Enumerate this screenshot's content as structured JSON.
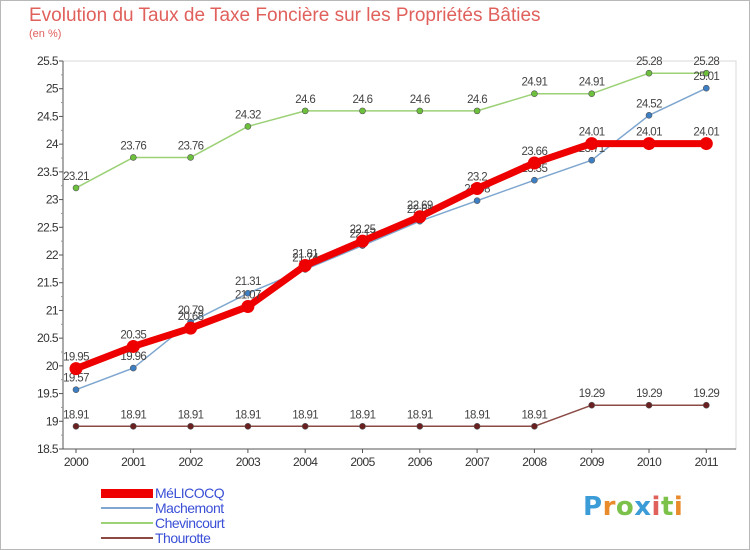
{
  "title": "Evolution du Taux de Taxe Foncière sur les Propriétés Bâties",
  "subtitle": "(en %)",
  "logo": {
    "text": "Proxiti",
    "colors": [
      "#3b9cd8",
      "#e98a2b",
      "#7cc24a",
      "#3b9cd8",
      "#e0605c",
      "#7cc24a",
      "#e98a2b"
    ]
  },
  "chart_data": {
    "type": "line",
    "x": [
      "2000",
      "2001",
      "2002",
      "2003",
      "2004",
      "2005",
      "2006",
      "2007",
      "2008",
      "2009",
      "2010",
      "2011"
    ],
    "ylim": [
      18.5,
      25.5
    ],
    "yticks": [
      "18.5",
      "19",
      "19.5",
      "20",
      "20.5",
      "21",
      "21.5",
      "22",
      "22.5",
      "23",
      "23.5",
      "24",
      "24.5",
      "25",
      "25.5"
    ],
    "grid": false,
    "legend_position": "bottom-left",
    "series": [
      {
        "name": "MéLICOCQ",
        "color": "#ee0000",
        "marker_color": "#ee0000",
        "values": [
          19.95,
          20.35,
          20.68,
          21.07,
          21.81,
          22.25,
          22.69,
          23.2,
          23.66,
          24.01,
          24.01,
          24.01
        ],
        "labels": [
          "19.95",
          "20.35",
          "20.68",
          "21.07",
          "21.81",
          "22.25",
          "22.69",
          "23.2",
          "23.66",
          "24.01",
          "24.01",
          "24.01"
        ]
      },
      {
        "name": "Machemont",
        "color": "#7ea6cf",
        "marker_color": "#3d7fc4",
        "values": [
          19.57,
          19.96,
          20.79,
          21.31,
          21.74,
          22.17,
          22.61,
          22.98,
          23.35,
          23.71,
          24.52,
          25.01
        ],
        "labels": [
          "19.57",
          "19.96",
          "20.79",
          "21.31",
          "21.74",
          "22.17",
          "22.61",
          "22.98",
          "23.35",
          "23.71",
          "24.52",
          "25.01"
        ]
      },
      {
        "name": "Chevincourt",
        "color": "#9cd176",
        "marker_color": "#6cc03c",
        "values": [
          23.21,
          23.76,
          23.76,
          24.32,
          24.6,
          24.6,
          24.6,
          24.6,
          24.91,
          24.91,
          25.28,
          25.28
        ],
        "labels": [
          "23.21",
          "23.76",
          "23.76",
          "24.32",
          "24.6",
          "24.6",
          "24.6",
          "24.6",
          "24.91",
          "24.91",
          "25.28",
          "25.28"
        ]
      },
      {
        "name": "Thourotte",
        "color": "#8c4a44",
        "marker_color": "#6a2020",
        "values": [
          18.91,
          18.91,
          18.91,
          18.91,
          18.91,
          18.91,
          18.91,
          18.91,
          18.91,
          19.29,
          19.29,
          19.29
        ],
        "labels": [
          "18.91",
          "18.91",
          "18.91",
          "18.91",
          "18.91",
          "18.91",
          "18.91",
          "18.91",
          "18.91",
          "19.29",
          "19.29",
          "19.29"
        ]
      }
    ]
  }
}
